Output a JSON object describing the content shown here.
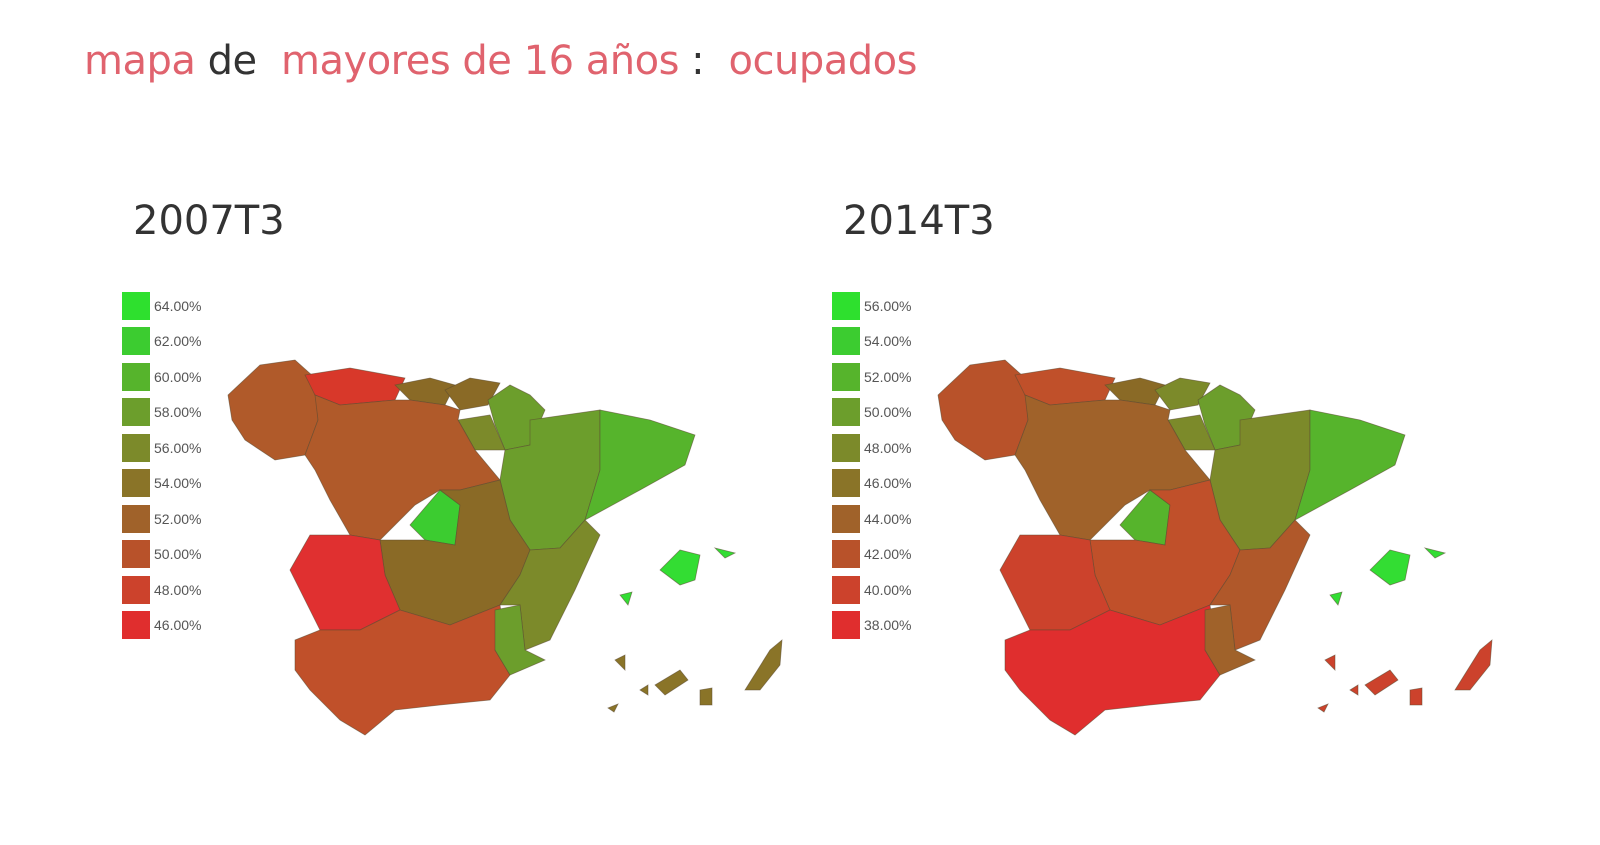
{
  "title": {
    "part1": "mapa",
    "part2": "de",
    "part3": "mayores de 16 años",
    "sep": ":",
    "part4": "ocupados",
    "accent_color": "#e0636e"
  },
  "maps": [
    {
      "year": "2007T3",
      "legend": [
        {
          "label": "64.00%",
          "color": "#2ee02e"
        },
        {
          "label": "62.00%",
          "color": "#3ccc30"
        },
        {
          "label": "60.00%",
          "color": "#56b42c"
        },
        {
          "label": "58.00%",
          "color": "#6c9e2c"
        },
        {
          "label": "56.00%",
          "color": "#7c8a2a"
        },
        {
          "label": "54.00%",
          "color": "#8a7428"
        },
        {
          "label": "52.00%",
          "color": "#a0622a"
        },
        {
          "label": "50.00%",
          "color": "#b8522a"
        },
        {
          "label": "48.00%",
          "color": "#cc422c"
        },
        {
          "label": "46.00%",
          "color": "#e02e2e"
        }
      ],
      "region_fills": [
        "#b05a2a",
        "#d8382a",
        "#8a6a26",
        "#8a6a26",
        "#6c9e2c",
        "#7c8a2a",
        "#6c9e2c",
        "#56b42c",
        "#b05a2a",
        "#3ccc30",
        "#8a6a26",
        "#e03030",
        "#c0502a",
        "#7c8a2a",
        "#6c9e2c",
        "#33dd33",
        "#8a7428"
      ]
    },
    {
      "year": "2014T3",
      "legend": [
        {
          "label": "56.00%",
          "color": "#2ee02e"
        },
        {
          "label": "54.00%",
          "color": "#3ccc30"
        },
        {
          "label": "52.00%",
          "color": "#56b42c"
        },
        {
          "label": "50.00%",
          "color": "#6c9e2c"
        },
        {
          "label": "48.00%",
          "color": "#7c8a2a"
        },
        {
          "label": "46.00%",
          "color": "#8a7428"
        },
        {
          "label": "44.00%",
          "color": "#a0622a"
        },
        {
          "label": "42.00%",
          "color": "#b8522a"
        },
        {
          "label": "40.00%",
          "color": "#cc422c"
        },
        {
          "label": "38.00%",
          "color": "#e02e2e"
        }
      ],
      "region_fills": [
        "#b8522a",
        "#c0502a",
        "#8a6a26",
        "#7c8a2a",
        "#6c9e2c",
        "#7c8a2a",
        "#7c8a2a",
        "#56b42c",
        "#a0622a",
        "#56b42c",
        "#c0502a",
        "#cc422c",
        "#e02e2e",
        "#b0582a",
        "#a0622a",
        "#33dd33",
        "#cc422c"
      ]
    }
  ]
}
